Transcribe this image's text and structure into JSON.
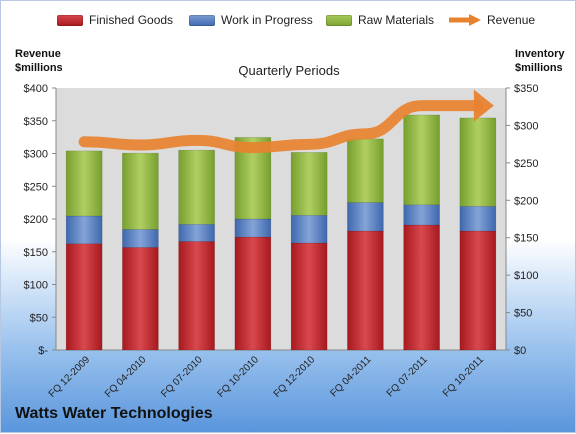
{
  "legend": {
    "finished_goods": "Finished Goods",
    "work_in_progress": "Work in Progress",
    "raw_materials": "Raw Materials",
    "revenue": "Revenue"
  },
  "left_axis_title": [
    "Revenue",
    "$millions"
  ],
  "right_axis_title": [
    "Inventory",
    "$millions"
  ],
  "plot_title": "Quarterly Periods",
  "footer_title": "Watts Water Technologies",
  "colors": {
    "finished_goods": "#c0262c",
    "work_in_progress": "#4f79bd",
    "raw_materials": "#8fb640",
    "revenue": "#e8822f",
    "plot_bg": "#dcdcdc"
  },
  "chart_data": {
    "type": "bar",
    "stacked": true,
    "categories": [
      "FQ 12-2009",
      "FQ 04-2010",
      "FQ 07-2010",
      "FQ 10-2010",
      "FQ 12-2010",
      "FQ 04-2011",
      "FQ 07-2011",
      "FQ 10-2011"
    ],
    "series": [
      {
        "name": "Finished Goods",
        "axis": "right",
        "values": [
          142,
          137,
          145,
          151,
          143,
          159,
          167,
          159
        ]
      },
      {
        "name": "Work in Progress",
        "axis": "right",
        "values": [
          37,
          24,
          23,
          24,
          37,
          38,
          27,
          33
        ]
      },
      {
        "name": "Raw Materials",
        "axis": "right",
        "values": [
          87,
          102,
          99,
          109,
          84,
          85,
          120,
          118
        ]
      },
      {
        "name": "Revenue",
        "type": "line",
        "axis": "left",
        "values": [
          318,
          313,
          320,
          309,
          314,
          330,
          373,
          373
        ]
      }
    ],
    "left_axis": {
      "min": 0,
      "max": 400,
      "ticks": [
        0,
        50,
        100,
        150,
        200,
        250,
        300,
        350,
        400
      ],
      "tick_labels": [
        "$-",
        "$50",
        "$100",
        "$150",
        "$200",
        "$250",
        "$300",
        "$350",
        "$400"
      ]
    },
    "right_axis": {
      "min": 0,
      "max": 350,
      "ticks": [
        0,
        50,
        100,
        150,
        200,
        250,
        300,
        350
      ],
      "tick_labels": [
        "$0",
        "$50",
        "$100",
        "$150",
        "$200",
        "$250",
        "$300",
        "$350"
      ]
    },
    "grid": false,
    "legend_position": "top"
  }
}
